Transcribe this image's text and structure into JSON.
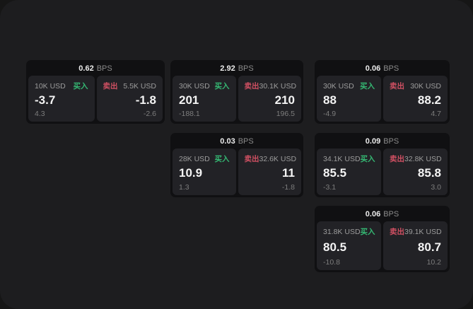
{
  "labels": {
    "bps_unit": "BPS",
    "buy": "买入",
    "sell": "卖出"
  },
  "colors": {
    "panel_bg": "#1d1d1f",
    "card_bg": "#101012",
    "cell_bg": "#222226",
    "buy_accent": "#35b873",
    "sell_accent": "#cf5062",
    "value_text": "#f4f4f4",
    "muted_text": "#9c9c9c"
  },
  "cards": [
    {
      "bps": "0.62",
      "buy": {
        "notional": "10K USD",
        "price": "-3.7",
        "change": "4.3"
      },
      "sell": {
        "notional": "5.5K USD",
        "price": "-1.8",
        "change": "-2.6"
      }
    },
    {
      "bps": "2.92",
      "buy": {
        "notional": "30K USD",
        "price": "201",
        "change": "-188.1"
      },
      "sell": {
        "notional": "30.1K USD",
        "price": "210",
        "change": "196.5"
      }
    },
    {
      "bps": "0.03",
      "buy": {
        "notional": "28K USD",
        "price": "10.9",
        "change": "1.3"
      },
      "sell": {
        "notional": "32.6K USD",
        "price": "11",
        "change": "-1.8"
      }
    },
    {
      "bps": "0.06",
      "buy": {
        "notional": "30K USD",
        "price": "88",
        "change": "-4.9"
      },
      "sell": {
        "notional": "30K USD",
        "price": "88.2",
        "change": "4.7"
      }
    },
    {
      "bps": "0.09",
      "buy": {
        "notional": "34.1K USD",
        "price": "85.5",
        "change": "-3.1"
      },
      "sell": {
        "notional": "32.8K USD",
        "price": "85.8",
        "change": "3.0"
      }
    },
    {
      "bps": "0.06",
      "buy": {
        "notional": "31.8K USD",
        "price": "80.5",
        "change": "-10.8"
      },
      "sell": {
        "notional": "39.1K USD",
        "price": "80.7",
        "change": "10.2"
      }
    }
  ]
}
